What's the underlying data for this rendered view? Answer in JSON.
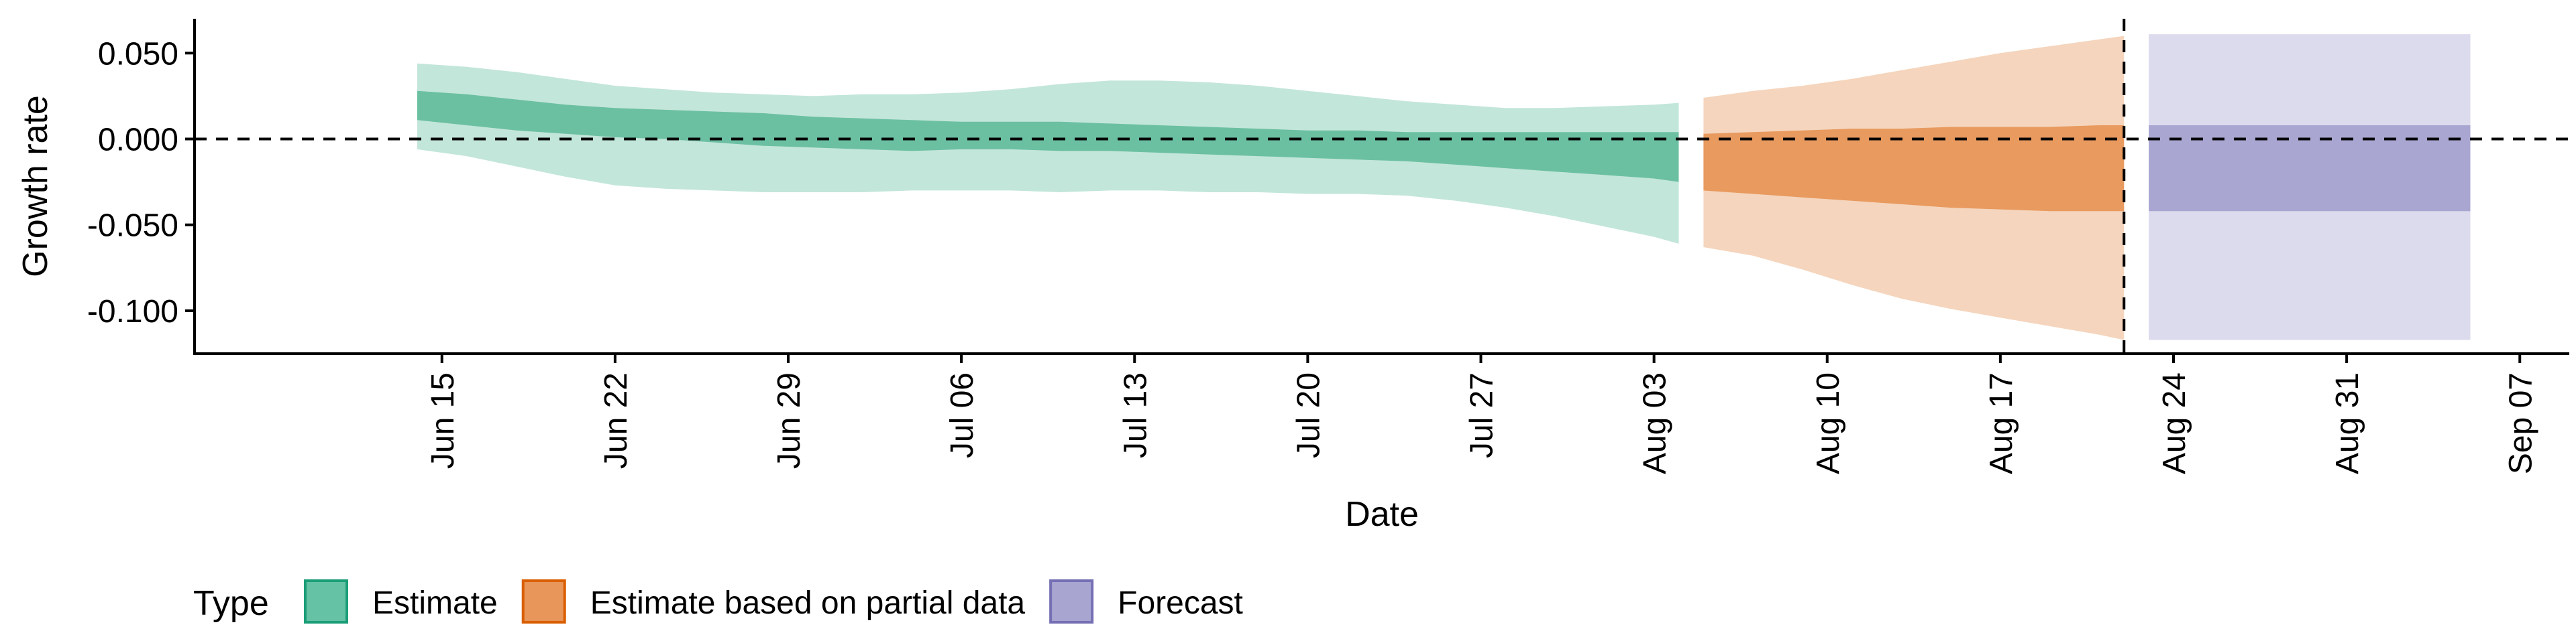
{
  "chart_data": {
    "type": "area",
    "xlabel": "Date",
    "ylabel": "Growth rate",
    "ylim": [
      -0.125,
      0.07
    ],
    "x_start": "2020-06-05",
    "x_end": "2020-09-09",
    "y_ticks": [
      {
        "value": 0.05,
        "label": "0.050"
      },
      {
        "value": 0.0,
        "label": "0.000"
      },
      {
        "value": -0.05,
        "label": "-0.050"
      },
      {
        "value": -0.1,
        "label": "-0.100"
      }
    ],
    "x_ticks": [
      {
        "date": "2020-06-15",
        "label": "Jun 15"
      },
      {
        "date": "2020-06-22",
        "label": "Jun 22"
      },
      {
        "date": "2020-06-29",
        "label": "Jun 29"
      },
      {
        "date": "2020-07-06",
        "label": "Jul 06"
      },
      {
        "date": "2020-07-13",
        "label": "Jul 13"
      },
      {
        "date": "2020-07-20",
        "label": "Jul 20"
      },
      {
        "date": "2020-07-27",
        "label": "Jul 27"
      },
      {
        "date": "2020-08-03",
        "label": "Aug 03"
      },
      {
        "date": "2020-08-10",
        "label": "Aug 10"
      },
      {
        "date": "2020-08-17",
        "label": "Aug 17"
      },
      {
        "date": "2020-08-24",
        "label": "Aug 24"
      },
      {
        "date": "2020-08-31",
        "label": "Aug 31"
      },
      {
        "date": "2020-09-07",
        "label": "Sep 07"
      }
    ],
    "hline_y": 0.0,
    "vline_date": "2020-08-22",
    "legend": {
      "title": "Type",
      "position": "bottom",
      "entries": [
        {
          "label": "Estimate",
          "fill": "#66c2a5",
          "stroke": "#1b9e77"
        },
        {
          "label": "Estimate based on partial data",
          "fill": "#e8965a",
          "stroke": "#d95f02"
        },
        {
          "label": "Forecast",
          "fill": "#a9a5d1",
          "stroke": "#7570b3"
        }
      ]
    },
    "series": [
      {
        "type_label": "Estimate",
        "outer_fill": "#c3e6da",
        "inner_fill": "#6cc0a2",
        "x": [
          "2020-06-14",
          "2020-06-16",
          "2020-06-18",
          "2020-06-20",
          "2020-06-22",
          "2020-06-24",
          "2020-06-26",
          "2020-06-28",
          "2020-06-30",
          "2020-07-02",
          "2020-07-04",
          "2020-07-06",
          "2020-07-08",
          "2020-07-10",
          "2020-07-12",
          "2020-07-14",
          "2020-07-16",
          "2020-07-18",
          "2020-07-20",
          "2020-07-22",
          "2020-07-24",
          "2020-07-26",
          "2020-07-28",
          "2020-07-30",
          "2020-08-01",
          "2020-08-03",
          "2020-08-04"
        ],
        "lower90": [
          -0.006,
          -0.01,
          -0.016,
          -0.022,
          -0.027,
          -0.029,
          -0.03,
          -0.031,
          -0.031,
          -0.031,
          -0.03,
          -0.03,
          -0.03,
          -0.031,
          -0.03,
          -0.03,
          -0.031,
          -0.031,
          -0.032,
          -0.032,
          -0.033,
          -0.036,
          -0.04,
          -0.045,
          -0.051,
          -0.057,
          -0.061
        ],
        "upper90": [
          0.044,
          0.042,
          0.039,
          0.035,
          0.031,
          0.029,
          0.027,
          0.026,
          0.025,
          0.026,
          0.026,
          0.027,
          0.029,
          0.032,
          0.034,
          0.034,
          0.033,
          0.031,
          0.028,
          0.025,
          0.022,
          0.02,
          0.018,
          0.018,
          0.019,
          0.02,
          0.021
        ],
        "lower50": [
          0.011,
          0.008,
          0.005,
          0.003,
          0.001,
          0.0,
          -0.002,
          -0.004,
          -0.005,
          -0.006,
          -0.007,
          -0.006,
          -0.006,
          -0.007,
          -0.007,
          -0.008,
          -0.009,
          -0.01,
          -0.011,
          -0.012,
          -0.013,
          -0.015,
          -0.017,
          -0.019,
          -0.021,
          -0.023,
          -0.025
        ],
        "upper50": [
          0.028,
          0.026,
          0.023,
          0.02,
          0.018,
          0.017,
          0.016,
          0.015,
          0.013,
          0.012,
          0.011,
          0.01,
          0.01,
          0.01,
          0.009,
          0.008,
          0.007,
          0.006,
          0.005,
          0.005,
          0.004,
          0.004,
          0.004,
          0.004,
          0.004,
          0.004,
          0.004
        ]
      },
      {
        "type_label": "Estimate based on partial data",
        "outer_fill": "#f5d5bd",
        "inner_fill": "#e89a5f",
        "x": [
          "2020-08-05",
          "2020-08-07",
          "2020-08-09",
          "2020-08-11",
          "2020-08-13",
          "2020-08-15",
          "2020-08-17",
          "2020-08-19",
          "2020-08-21",
          "2020-08-22"
        ],
        "lower90": [
          -0.063,
          -0.068,
          -0.076,
          -0.085,
          -0.093,
          -0.099,
          -0.104,
          -0.109,
          -0.114,
          -0.117
        ],
        "upper90": [
          0.024,
          0.028,
          0.031,
          0.035,
          0.04,
          0.045,
          0.05,
          0.054,
          0.058,
          0.06
        ],
        "lower50": [
          -0.03,
          -0.032,
          -0.034,
          -0.036,
          -0.038,
          -0.04,
          -0.041,
          -0.042,
          -0.042,
          -0.042
        ],
        "upper50": [
          0.003,
          0.004,
          0.005,
          0.006,
          0.006,
          0.007,
          0.007,
          0.007,
          0.008,
          0.008
        ]
      },
      {
        "type_label": "Forecast",
        "outer_fill": "#dcdaed",
        "inner_fill": "#aaa6d2",
        "x": [
          "2020-08-23",
          "2020-09-05"
        ],
        "lower90": [
          -0.117,
          -0.117
        ],
        "upper90": [
          0.061,
          0.061
        ],
        "lower50": [
          -0.042,
          -0.042
        ],
        "upper50": [
          0.008,
          0.008
        ]
      }
    ]
  }
}
